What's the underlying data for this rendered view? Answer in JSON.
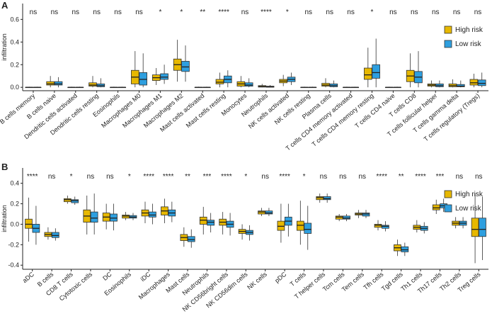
{
  "chart_data": [
    {
      "type": "box",
      "panel": "A",
      "ylabel": "infiltration",
      "legend": "top-right",
      "ylim": [
        -0.03,
        0.74
      ],
      "yticks": [
        {
          "value": 0,
          "label": "0.0"
        },
        0.2,
        0.4,
        0.6
      ],
      "categories": [
        "B cells memory",
        "B cells naive",
        "Dendritic cells activated",
        "Dendritic cells resting",
        "Eosinophils",
        "Macrophages M0",
        "Macrophages M1",
        "Macrophages M2",
        "Mast cells activated",
        "Mast cells resting",
        "Monocytes",
        "Neutrophils",
        "NK cells activated",
        "NK cells resting",
        "Plasma cells",
        "T cells CD4 memory activated",
        "T cells CD4 memory resting",
        "T cells CD4 naive",
        "T cells CD8",
        "T cells follicular helper",
        "T cells gamma delta",
        "T cells regulatory (Tregs)"
      ],
      "annotations": [
        "ns",
        "ns",
        "ns",
        "ns",
        "ns",
        "ns",
        "*",
        "*",
        "**",
        "****",
        "ns",
        "****",
        "*",
        "ns",
        "ns",
        "ns",
        "*",
        "ns",
        "ns",
        "ns",
        "ns",
        "ns"
      ],
      "series": [
        {
          "name": "High risk",
          "color": "#E7B800",
          "values": [
            [
              0,
              0,
              0,
              0,
              0.005
            ],
            [
              0,
              0.02,
              0.03,
              0.05,
              0.1
            ],
            [
              0,
              0,
              0,
              0,
              0.005
            ],
            [
              0,
              0.01,
              0.02,
              0.04,
              0.1
            ],
            [
              0,
              0,
              0,
              0,
              0.005
            ],
            [
              0,
              0.03,
              0.09,
              0.15,
              0.32
            ],
            [
              0.02,
              0.06,
              0.085,
              0.11,
              0.17
            ],
            [
              0.05,
              0.15,
              0.2,
              0.25,
              0.42
            ],
            [
              0,
              0,
              0,
              0,
              0.005
            ],
            [
              0,
              0.03,
              0.045,
              0.07,
              0.13
            ],
            [
              0,
              0.01,
              0.03,
              0.05,
              0.1
            ],
            [
              0,
              0.002,
              0.008,
              0.015,
              0.03
            ],
            [
              0.01,
              0.04,
              0.055,
              0.07,
              0.11
            ],
            [
              0,
              0,
              0,
              0,
              0.005
            ],
            [
              0,
              0.01,
              0.02,
              0.035,
              0.08
            ],
            [
              0,
              0,
              0,
              0,
              0.005
            ],
            [
              0,
              0.07,
              0.11,
              0.17,
              0.35
            ],
            [
              0,
              0,
              0,
              0,
              0.005
            ],
            [
              0,
              0.05,
              0.1,
              0.15,
              0.3
            ],
            [
              0,
              0.01,
              0.02,
              0.03,
              0.06
            ],
            [
              0,
              0.005,
              0.015,
              0.03,
              0.07
            ],
            [
              0,
              0.02,
              0.04,
              0.07,
              0.12
            ]
          ]
        },
        {
          "name": "Low risk",
          "color": "#2E9FDF",
          "values": [
            [
              0,
              0,
              0,
              0,
              0.005
            ],
            [
              0,
              0.02,
              0.03,
              0.05,
              0.09
            ],
            [
              0,
              0,
              0,
              0,
              0.005
            ],
            [
              0,
              0.005,
              0.015,
              0.03,
              0.08
            ],
            [
              0,
              0,
              0,
              0,
              0.005
            ],
            [
              0,
              0.02,
              0.07,
              0.13,
              0.3
            ],
            [
              0.03,
              0.07,
              0.09,
              0.12,
              0.2
            ],
            [
              0.05,
              0.14,
              0.18,
              0.23,
              0.37
            ],
            [
              0,
              0,
              0,
              0,
              0.005
            ],
            [
              0,
              0.04,
              0.07,
              0.1,
              0.15
            ],
            [
              0,
              0.01,
              0.02,
              0.04,
              0.08
            ],
            [
              0,
              0.001,
              0.004,
              0.01,
              0.02
            ],
            [
              0.02,
              0.05,
              0.07,
              0.09,
              0.13
            ],
            [
              0,
              0,
              0,
              0,
              0.005
            ],
            [
              0,
              0.005,
              0.015,
              0.03,
              0.06
            ],
            [
              0,
              0,
              0,
              0,
              0.005
            ],
            [
              0,
              0.08,
              0.13,
              0.2,
              0.43
            ],
            [
              0,
              0,
              0,
              0,
              0.005
            ],
            [
              0,
              0.04,
              0.09,
              0.14,
              0.32
            ],
            [
              0,
              0.005,
              0.015,
              0.03,
              0.06
            ],
            [
              0,
              0.005,
              0.01,
              0.025,
              0.06
            ],
            [
              0,
              0.015,
              0.035,
              0.065,
              0.13
            ]
          ]
        }
      ]
    },
    {
      "type": "box",
      "panel": "B",
      "ylabel": "infiltration",
      "legend": "top-right",
      "ylim": [
        -0.44,
        0.55
      ],
      "yticks": [
        -0.4,
        -0.2,
        {
          "value": 0,
          "label": "0.0"
        },
        0.2,
        0.4
      ],
      "categories": [
        "aDC",
        "B cells",
        "CD8 T cells",
        "Cytotoxic cells",
        "DC",
        "Eosinophils",
        "iDC",
        "Macrophages",
        "Mast cells",
        "Neutrophils",
        "NK CD56bright cells",
        "NK CD56dim cells",
        "NK cells",
        "pDC",
        "T cells",
        "T helper cells",
        "Tcm cells",
        "Tem cells",
        "Tfh cells",
        "Tgd cells",
        "Th1 cells",
        "Th17 cells",
        "Th2 cells",
        "Treg cells"
      ],
      "annotations": [
        "****",
        "ns",
        "*",
        "ns",
        "ns",
        "*",
        "****",
        "****",
        "**",
        "***",
        "****",
        "*",
        "ns",
        "****",
        "*",
        "ns",
        "ns",
        "ns",
        "****",
        "**",
        "****",
        "***",
        "ns",
        "ns"
      ],
      "series": [
        {
          "name": "High risk",
          "color": "#E7B800",
          "values": [
            [
              -0.17,
              -0.04,
              0,
              0.05,
              0.26
            ],
            [
              -0.15,
              -0.12,
              -0.1,
              -0.08,
              -0.03
            ],
            [
              0.2,
              0.22,
              0.24,
              0.25,
              0.28
            ],
            [
              -0.1,
              0.02,
              0.08,
              0.14,
              0.28
            ],
            [
              -0.05,
              0.03,
              0.07,
              0.11,
              0.2
            ],
            [
              0.04,
              0.06,
              0.08,
              0.09,
              0.12
            ],
            [
              0.01,
              0.08,
              0.11,
              0.14,
              0.22
            ],
            [
              0.01,
              0.09,
              0.13,
              0.17,
              0.25
            ],
            [
              -0.22,
              -0.16,
              -0.13,
              -0.1,
              -0.03
            ],
            [
              -0.1,
              0,
              0.04,
              0.07,
              0.17
            ],
            [
              -0.1,
              -0.01,
              0.02,
              0.05,
              0.12
            ],
            [
              -0.15,
              -0.09,
              -0.07,
              -0.05,
              0
            ],
            [
              0.08,
              0.1,
              0.12,
              0.13,
              0.16
            ],
            [
              -0.18,
              -0.06,
              -0.02,
              0.03,
              0.2
            ],
            [
              -0.2,
              -0.06,
              -0.01,
              0.03,
              0.23
            ],
            [
              0.21,
              0.24,
              0.26,
              0.27,
              0.3
            ],
            [
              0.03,
              0.05,
              0.07,
              0.08,
              0.1
            ],
            [
              0.06,
              0.09,
              0.1,
              0.11,
              0.14
            ],
            [
              -0.06,
              -0.03,
              -0.01,
              0,
              0.04
            ],
            [
              -0.31,
              -0.26,
              -0.23,
              -0.2,
              -0.15
            ],
            [
              -0.08,
              -0.05,
              -0.03,
              -0.01,
              0.04
            ],
            [
              0.1,
              0.14,
              0.16,
              0.19,
              0.24
            ],
            [
              -0.04,
              -0.01,
              0.01,
              0.03,
              0.07
            ],
            [
              -0.38,
              -0.12,
              -0.05,
              0.06,
              0.3
            ]
          ]
        },
        {
          "name": "Low risk",
          "color": "#2E9FDF",
          "values": [
            [
              -0.2,
              -0.08,
              -0.04,
              0,
              0.18
            ],
            [
              -0.16,
              -0.13,
              -0.11,
              -0.08,
              -0.04
            ],
            [
              0.19,
              0.21,
              0.23,
              0.24,
              0.27
            ],
            [
              -0.1,
              0.02,
              0.06,
              0.12,
              0.3
            ],
            [
              -0.06,
              0.03,
              0.06,
              0.1,
              0.2
            ],
            [
              0.04,
              0.06,
              0.07,
              0.085,
              0.11
            ],
            [
              0,
              0.07,
              0.09,
              0.12,
              0.2
            ],
            [
              0.02,
              0.08,
              0.11,
              0.14,
              0.22
            ],
            [
              -0.23,
              -0.17,
              -0.15,
              -0.12,
              -0.05
            ],
            [
              -0.08,
              -0.01,
              0.02,
              0.04,
              0.11
            ],
            [
              -0.11,
              -0.03,
              0,
              0.03,
              0.11
            ],
            [
              -0.16,
              -0.1,
              -0.08,
              -0.06,
              -0.01
            ],
            [
              0.08,
              0.1,
              0.11,
              0.13,
              0.16
            ],
            [
              -0.12,
              -0.01,
              0.03,
              0.07,
              0.2
            ],
            [
              -0.25,
              -0.09,
              -0.05,
              0.01,
              0.18
            ],
            [
              0.21,
              0.24,
              0.25,
              0.27,
              0.3
            ],
            [
              0.03,
              0.05,
              0.06,
              0.08,
              0.1
            ],
            [
              0.06,
              0.08,
              0.1,
              0.11,
              0.14
            ],
            [
              -0.07,
              -0.04,
              -0.02,
              -0.01,
              0.03
            ],
            [
              -0.31,
              -0.27,
              -0.25,
              -0.22,
              -0.18
            ],
            [
              -0.09,
              -0.06,
              -0.04,
              -0.02,
              0.02
            ],
            [
              0.12,
              0.16,
              0.18,
              0.2,
              0.25
            ],
            [
              -0.04,
              -0.01,
              0.01,
              0.03,
              0.07
            ],
            [
              -0.35,
              -0.12,
              -0.05,
              0.06,
              0.27
            ]
          ]
        }
      ]
    }
  ]
}
